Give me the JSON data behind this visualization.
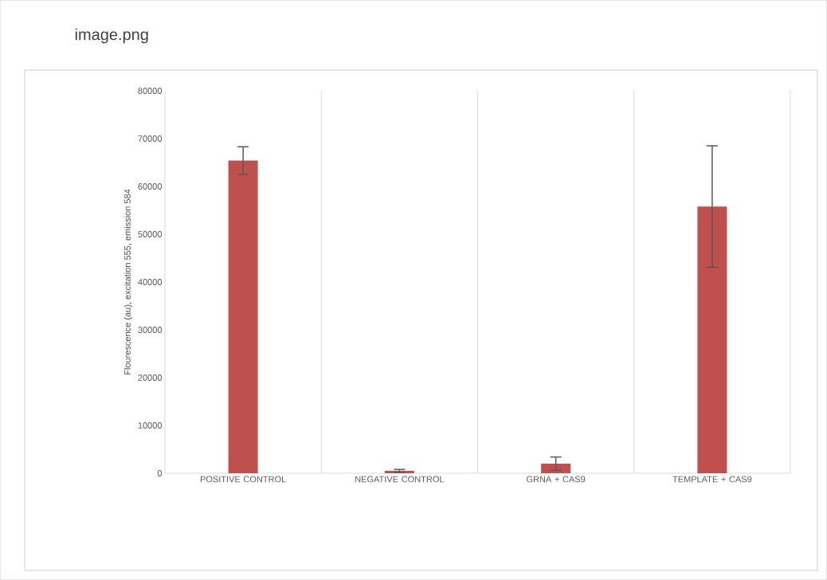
{
  "chart_data": {
    "type": "bar",
    "ylabel": "Flourescence (au), excitation 555, emission 584",
    "annotations": [
      "image.png"
    ],
    "categories": [
      "POSITIVE CONTROL",
      "NEGATIVE CONTROL",
      "GRNA + CAS9",
      "TEMPLATE + CAS9"
    ],
    "values": [
      65400,
      500,
      2000,
      55800
    ],
    "errors": [
      2900,
      300,
      1400,
      12700
    ],
    "color": "#c0504d",
    "ylim": [
      0,
      80000
    ],
    "yticks": [
      0,
      10000,
      20000,
      30000,
      40000,
      50000,
      60000,
      70000,
      80000
    ],
    "grid": "x"
  }
}
